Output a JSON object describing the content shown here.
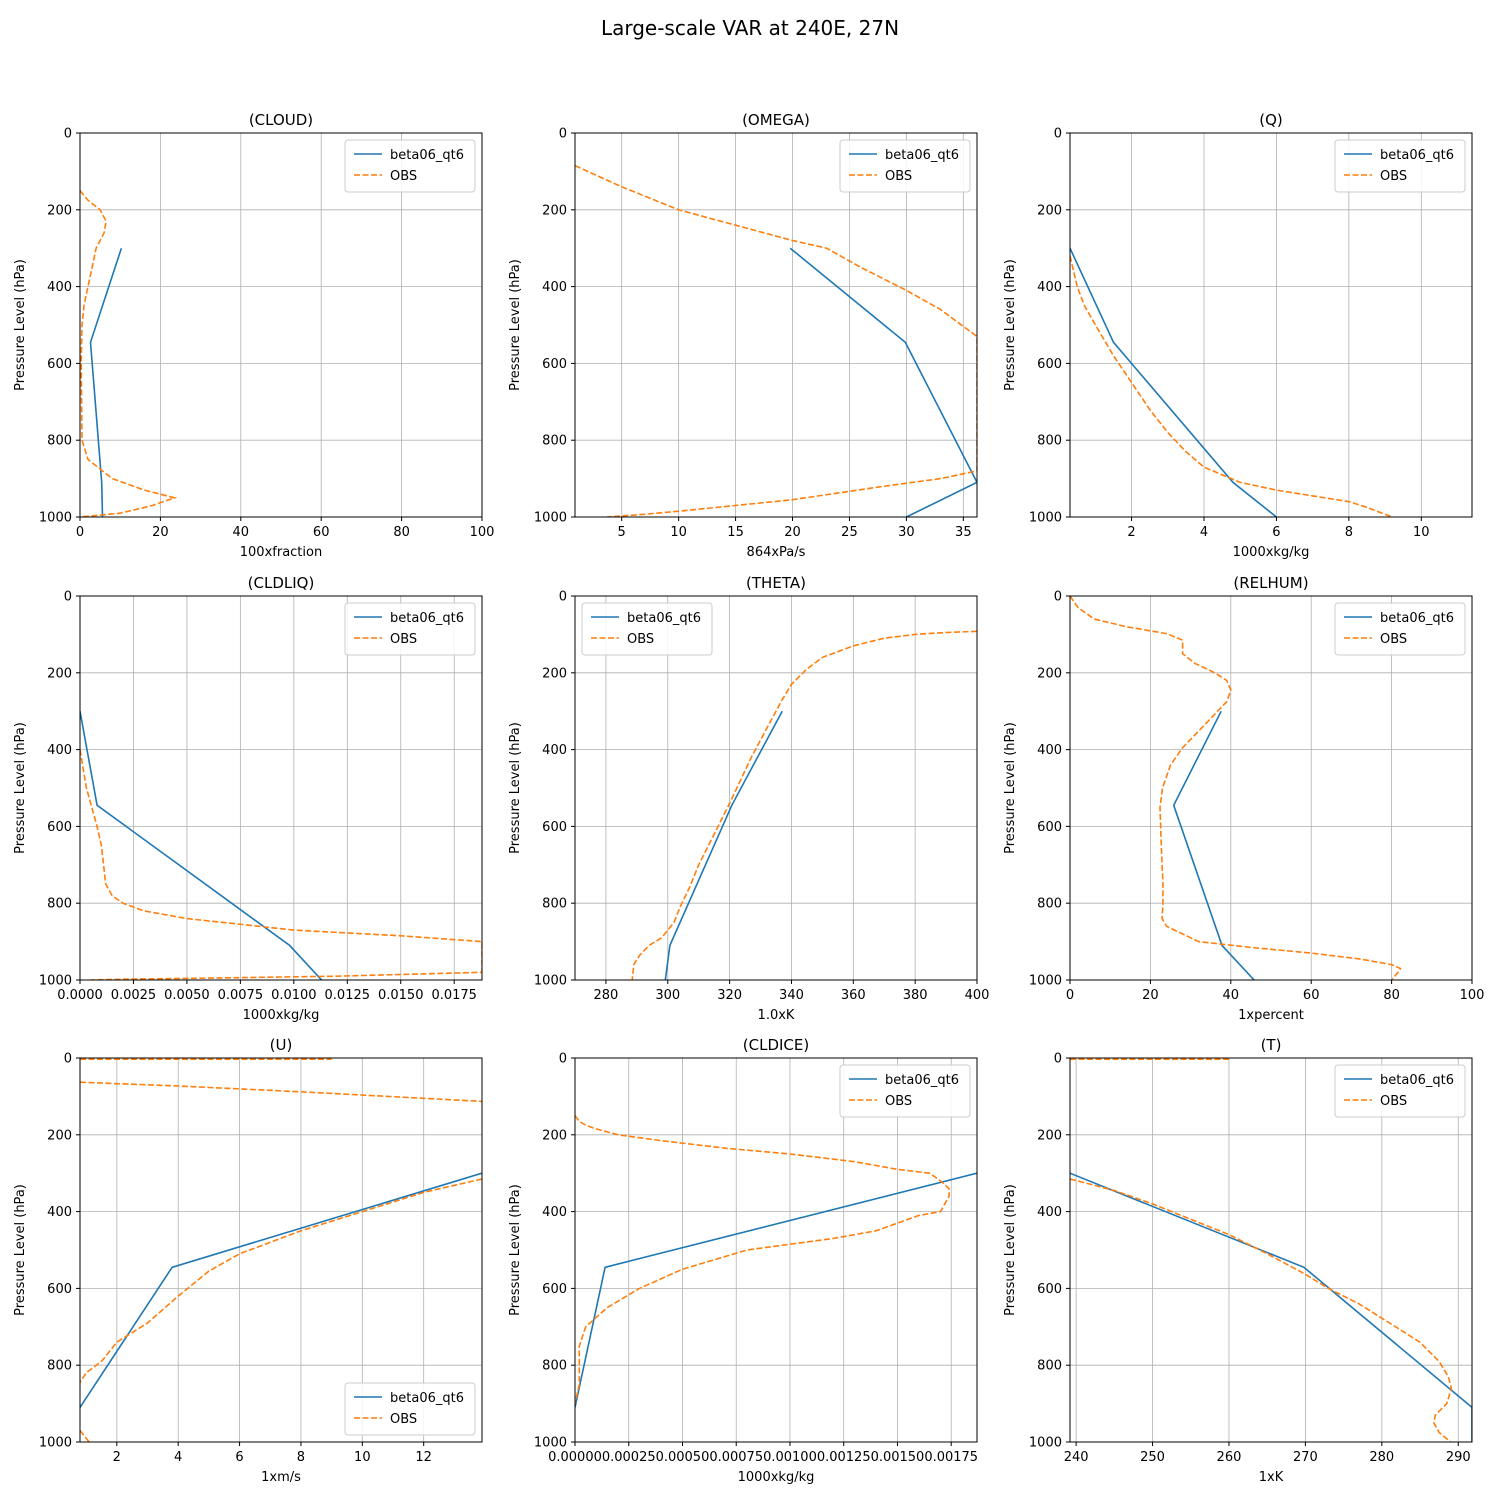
{
  "figure": {
    "title": "Large-scale VAR at 240E, 27N"
  },
  "colors": {
    "model": "#1f77b4",
    "obs": "#ff7f0e",
    "grid": "#b0b0b0",
    "axis": "#000000"
  },
  "chart_data": [
    {
      "type": "line",
      "title": "(CLOUD)",
      "xlabel": "100xfraction",
      "ylabel": "Pressure Level (hPa)",
      "xlim": [
        0,
        100
      ],
      "ylim": [
        1000,
        0
      ],
      "xticks": [
        0,
        20,
        40,
        60,
        80,
        100
      ],
      "yticks": [
        0,
        200,
        400,
        600,
        800,
        1000
      ],
      "grid": true,
      "legend": {
        "loc": "top-right",
        "entries": [
          "beta06_qt6",
          "OBS"
        ]
      },
      "series": [
        {
          "name": "beta06_qt6",
          "style": "solid",
          "x": [
            10.3,
            2.6,
            5.4,
            5.6
          ],
          "y": [
            300,
            545,
            910,
            1000
          ]
        },
        {
          "name": "OBS",
          "style": "dashed",
          "x": [
            0,
            2,
            5,
            6.5,
            6,
            4,
            3,
            2,
            1,
            0.5,
            0.3,
            0.5,
            2,
            8,
            16,
            23.5,
            18,
            10,
            0
          ],
          "y": [
            150,
            175,
            200,
            230,
            260,
            300,
            350,
            400,
            450,
            500,
            600,
            800,
            850,
            900,
            930,
            950,
            970,
            990,
            1000
          ]
        }
      ]
    },
    {
      "type": "line",
      "title": "(OMEGA)",
      "xlabel": "864xPa/s",
      "ylabel": "Pressure Level (hPa)",
      "xlim": [
        0.9,
        36.2
      ],
      "ylim": [
        1000,
        0
      ],
      "xticks": [
        5,
        10,
        15,
        20,
        25,
        30,
        35
      ],
      "yticks": [
        0,
        200,
        400,
        600,
        800,
        1000
      ],
      "grid": true,
      "legend": {
        "loc": "top-right",
        "entries": [
          "beta06_qt6",
          "OBS"
        ]
      },
      "series": [
        {
          "name": "beta06_qt6",
          "style": "solid",
          "x": [
            19.8,
            29.9,
            36.2,
            30
          ],
          "y": [
            300,
            545,
            910,
            1000
          ]
        },
        {
          "name": "OBS",
          "style": "dashed",
          "x": [
            0.9,
            5,
            10,
            15,
            20,
            23,
            26,
            30,
            33,
            36.2,
            36.2,
            33,
            28,
            20,
            15,
            10,
            7,
            3.7
          ],
          "y": [
            85,
            140,
            200,
            240,
            280,
            300,
            350,
            410,
            460,
            530,
            880,
            900,
            920,
            955,
            970,
            985,
            993,
            1000
          ]
        }
      ]
    },
    {
      "type": "line",
      "title": "(Q)",
      "xlabel": "1000xkg/kg",
      "ylabel": "Pressure Level (hPa)",
      "xlim": [
        0.3,
        11.4
      ],
      "ylim": [
        1000,
        0
      ],
      "xticks": [
        2,
        4,
        6,
        8,
        10
      ],
      "yticks": [
        0,
        200,
        400,
        600,
        800,
        1000
      ],
      "grid": true,
      "legend": {
        "loc": "top-right",
        "entries": [
          "beta06_qt6",
          "OBS"
        ]
      },
      "series": [
        {
          "name": "beta06_qt6",
          "style": "solid",
          "x": [
            0.3,
            1.5,
            4.8,
            6
          ],
          "y": [
            300,
            545,
            910,
            1000
          ]
        },
        {
          "name": "OBS",
          "style": "dashed",
          "x": [
            0.3,
            0.5,
            0.7,
            1.0,
            1.5,
            2.0,
            2.5,
            3.0,
            3.5,
            4.0,
            5.0,
            6.0,
            7.0,
            8.0,
            8.5,
            9.2
          ],
          "y": [
            320,
            400,
            450,
            500,
            580,
            650,
            720,
            780,
            830,
            870,
            910,
            930,
            945,
            960,
            975,
            1000
          ]
        }
      ]
    },
    {
      "type": "line",
      "title": "(CLDLIQ)",
      "xlabel": "1000xkg/kg",
      "ylabel": "Pressure Level (hPa)",
      "xlim": [
        0,
        0.0188
      ],
      "ylim": [
        1000,
        0
      ],
      "xticks": [
        0,
        0.0025,
        0.005,
        0.0075,
        0.01,
        0.0125,
        0.015,
        0.0175
      ],
      "xticklabels": [
        "0.0000",
        "0.0025",
        "0.0050",
        "0.0075",
        "0.0100",
        "0.0125",
        "0.0150",
        "0.0175"
      ],
      "yticks": [
        0,
        200,
        400,
        600,
        800,
        1000
      ],
      "grid": true,
      "legend": {
        "loc": "top-right",
        "entries": [
          "beta06_qt6",
          "OBS"
        ]
      },
      "series": [
        {
          "name": "beta06_qt6",
          "style": "solid",
          "x": [
            0,
            0.0008,
            0.0098,
            0.0113
          ],
          "y": [
            300,
            545,
            910,
            1000
          ]
        },
        {
          "name": "OBS",
          "style": "dashed",
          "x": [
            0,
            0.0003,
            0.0008,
            0.001,
            0.0012,
            0.0015,
            0.002,
            0.003,
            0.005,
            0.0075,
            0.01,
            0.015,
            0.0188,
            0.0188,
            0.012,
            0.006,
            0.002,
            0.0005
          ],
          "y": [
            400,
            500,
            600,
            650,
            750,
            780,
            800,
            820,
            840,
            855,
            870,
            885,
            900,
            980,
            990,
            995,
            998,
            1000
          ]
        }
      ]
    },
    {
      "type": "line",
      "title": "(THETA)",
      "xlabel": "1.0xK",
      "ylabel": "Pressure Level (hPa)",
      "xlim": [
        270,
        400
      ],
      "ylim": [
        1000,
        0
      ],
      "xticks": [
        280,
        300,
        320,
        340,
        360,
        380,
        400
      ],
      "yticks": [
        0,
        200,
        400,
        600,
        800,
        1000
      ],
      "grid": true,
      "legend": {
        "loc": "top-left",
        "entries": [
          "beta06_qt6",
          "OBS"
        ]
      },
      "series": [
        {
          "name": "beta06_qt6",
          "style": "solid",
          "x": [
            337,
            320.7,
            300.7,
            299.2
          ],
          "y": [
            300,
            545,
            910,
            1000
          ]
        },
        {
          "name": "OBS",
          "style": "dashed",
          "x": [
            400,
            390,
            380,
            370,
            360,
            350,
            345,
            340,
            337,
            333,
            327,
            320,
            315,
            310,
            307,
            304,
            302,
            300,
            298,
            294,
            291,
            289,
            288.5
          ],
          "y": [
            92,
            95,
            100,
            110,
            130,
            160,
            190,
            230,
            270,
            330,
            420,
            540,
            620,
            700,
            760,
            810,
            850,
            870,
            890,
            910,
            935,
            960,
            1000
          ]
        }
      ]
    },
    {
      "type": "line",
      "title": "(RELHUM)",
      "xlabel": "1xpercent",
      "ylabel": "Pressure Level (hPa)",
      "xlim": [
        0,
        100
      ],
      "ylim": [
        1000,
        0
      ],
      "xticks": [
        0,
        20,
        40,
        60,
        80,
        100
      ],
      "yticks": [
        0,
        200,
        400,
        600,
        800,
        1000
      ],
      "grid": true,
      "legend": {
        "loc": "top-right",
        "entries": [
          "beta06_qt6",
          "OBS"
        ]
      },
      "series": [
        {
          "name": "beta06_qt6",
          "style": "solid",
          "x": [
            37.6,
            25.8,
            37.8,
            45.8
          ],
          "y": [
            300,
            545,
            910,
            1000
          ]
        },
        {
          "name": "OBS",
          "style": "dashed",
          "x": [
            0,
            2,
            6,
            14,
            24,
            28,
            28,
            31,
            36,
            39,
            40,
            39,
            34,
            28,
            25,
            23,
            22.4,
            22.7,
            23.1,
            23.1,
            22.9,
            24,
            26,
            32,
            45,
            60,
            72,
            80,
            82.2,
            82,
            80
          ],
          "y": [
            0,
            30,
            60,
            80,
            98,
            115,
            150,
            175,
            200,
            220,
            245,
            275,
            330,
            395,
            440,
            500,
            550,
            650,
            750,
            800,
            840,
            860,
            870,
            900,
            915,
            930,
            945,
            960,
            970,
            975,
            1000
          ]
        }
      ]
    },
    {
      "type": "line",
      "title": "(U)",
      "xlabel": "1xm/s",
      "ylabel": "Pressure Level (hPa)",
      "xlim": [
        0.8,
        13.9
      ],
      "ylim": [
        1000,
        0
      ],
      "xticks": [
        2,
        4,
        6,
        8,
        10,
        12
      ],
      "yticks": [
        0,
        200,
        400,
        600,
        800,
        1000
      ],
      "grid": true,
      "legend": {
        "loc": "bottom-right",
        "entries": [
          "beta06_qt6",
          "OBS"
        ]
      },
      "series": [
        {
          "name": "beta06_qt6",
          "style": "solid",
          "x": [
            13.9,
            3.8,
            0.8
          ],
          "y": [
            300,
            545,
            910
          ]
        },
        {
          "name": "OBS_top",
          "style": "dashed",
          "x": [
            0.8,
            9.0
          ],
          "y": [
            3,
            3
          ]
        },
        {
          "name": "OBS",
          "style": "dashed",
          "x": [
            0.8,
            4,
            8,
            13.9
          ],
          "y": [
            63,
            73,
            88,
            113
          ]
        },
        {
          "name": "OBS_low",
          "style": "dashed",
          "x": [
            13.9,
            12,
            10,
            8,
            6,
            5,
            4,
            3,
            2,
            1.5,
            1,
            0.8
          ],
          "y": [
            315,
            350,
            400,
            450,
            510,
            555,
            620,
            690,
            740,
            790,
            820,
            845
          ]
        },
        {
          "name": "OBS_tail",
          "style": "dashed",
          "x": [
            0.8,
            1.1
          ],
          "y": [
            970,
            1000
          ]
        }
      ]
    },
    {
      "type": "line",
      "title": "(CLDICE)",
      "xlabel": "1000xkg/kg",
      "ylabel": "Pressure Level (hPa)",
      "xlim": [
        0,
        0.00187
      ],
      "ylim": [
        1000,
        0
      ],
      "xticks": [
        0,
        0.00025,
        0.0005,
        0.00075,
        0.001,
        0.00125,
        0.0015,
        0.00175
      ],
      "xticklabels": [
        "0.00000",
        "0.00025",
        "0.00050",
        "0.00075",
        "0.00100",
        "0.00125",
        "0.00150",
        "0.00175"
      ],
      "yticks": [
        0,
        200,
        400,
        600,
        800,
        1000
      ],
      "grid": true,
      "legend": {
        "loc": "top-right",
        "entries": [
          "beta06_qt6",
          "OBS"
        ]
      },
      "series": [
        {
          "name": "beta06_qt6",
          "style": "solid",
          "x": [
            0.00187,
            0.00014,
            0
          ],
          "y": [
            300,
            545,
            910
          ]
        },
        {
          "name": "OBS",
          "style": "dashed",
          "x": [
            0,
            2e-05,
            5e-05,
            0.0001,
            0.0002,
            0.0004,
            0.0007,
            0.001,
            0.0013,
            0.0015,
            0.00165,
            0.0017,
            0.00174,
            0.00174,
            0.0017,
            0.0016,
            0.0014,
            0.0012,
            0.001,
            0.0008,
            0.0005,
            0.0003,
            0.00015,
            5e-05,
            2e-05,
            2e-05,
            0
          ],
          "y": [
            150,
            165,
            175,
            185,
            200,
            215,
            235,
            250,
            270,
            290,
            300,
            320,
            340,
            360,
            400,
            410,
            450,
            470,
            485,
            500,
            550,
            600,
            650,
            700,
            750,
            850,
            900
          ]
        }
      ]
    },
    {
      "type": "line",
      "title": "(T)",
      "xlabel": "1xK",
      "ylabel": "Pressure Level (hPa)",
      "xlim": [
        239.2,
        291.8
      ],
      "ylim": [
        1000,
        0
      ],
      "xticks": [
        240,
        250,
        260,
        270,
        280,
        290
      ],
      "yticks": [
        0,
        200,
        400,
        600,
        800,
        1000
      ],
      "grid": true,
      "legend": {
        "loc": "top-right",
        "entries": [
          "beta06_qt6",
          "OBS"
        ]
      },
      "series": [
        {
          "name": "beta06_qt6",
          "style": "solid",
          "x": [
            239.2,
            269.8,
            291.8,
            291.8
          ],
          "y": [
            300,
            545,
            910,
            1000
          ]
        },
        {
          "name": "OBS_top",
          "style": "dashed",
          "x": [
            239.2,
            260
          ],
          "y": [
            3,
            3
          ]
        },
        {
          "name": "OBS",
          "style": "dashed",
          "x": [
            239.2,
            245,
            250,
            255,
            260,
            265,
            269.7,
            273,
            277,
            281,
            285,
            287.5,
            288.7,
            289.1,
            288.5,
            287,
            286.8,
            287.5,
            289
          ],
          "y": [
            315,
            345,
            380,
            420,
            460,
            510,
            560,
            600,
            640,
            690,
            740,
            790,
            830,
            860,
            900,
            930,
            950,
            975,
            1000
          ]
        }
      ]
    }
  ]
}
